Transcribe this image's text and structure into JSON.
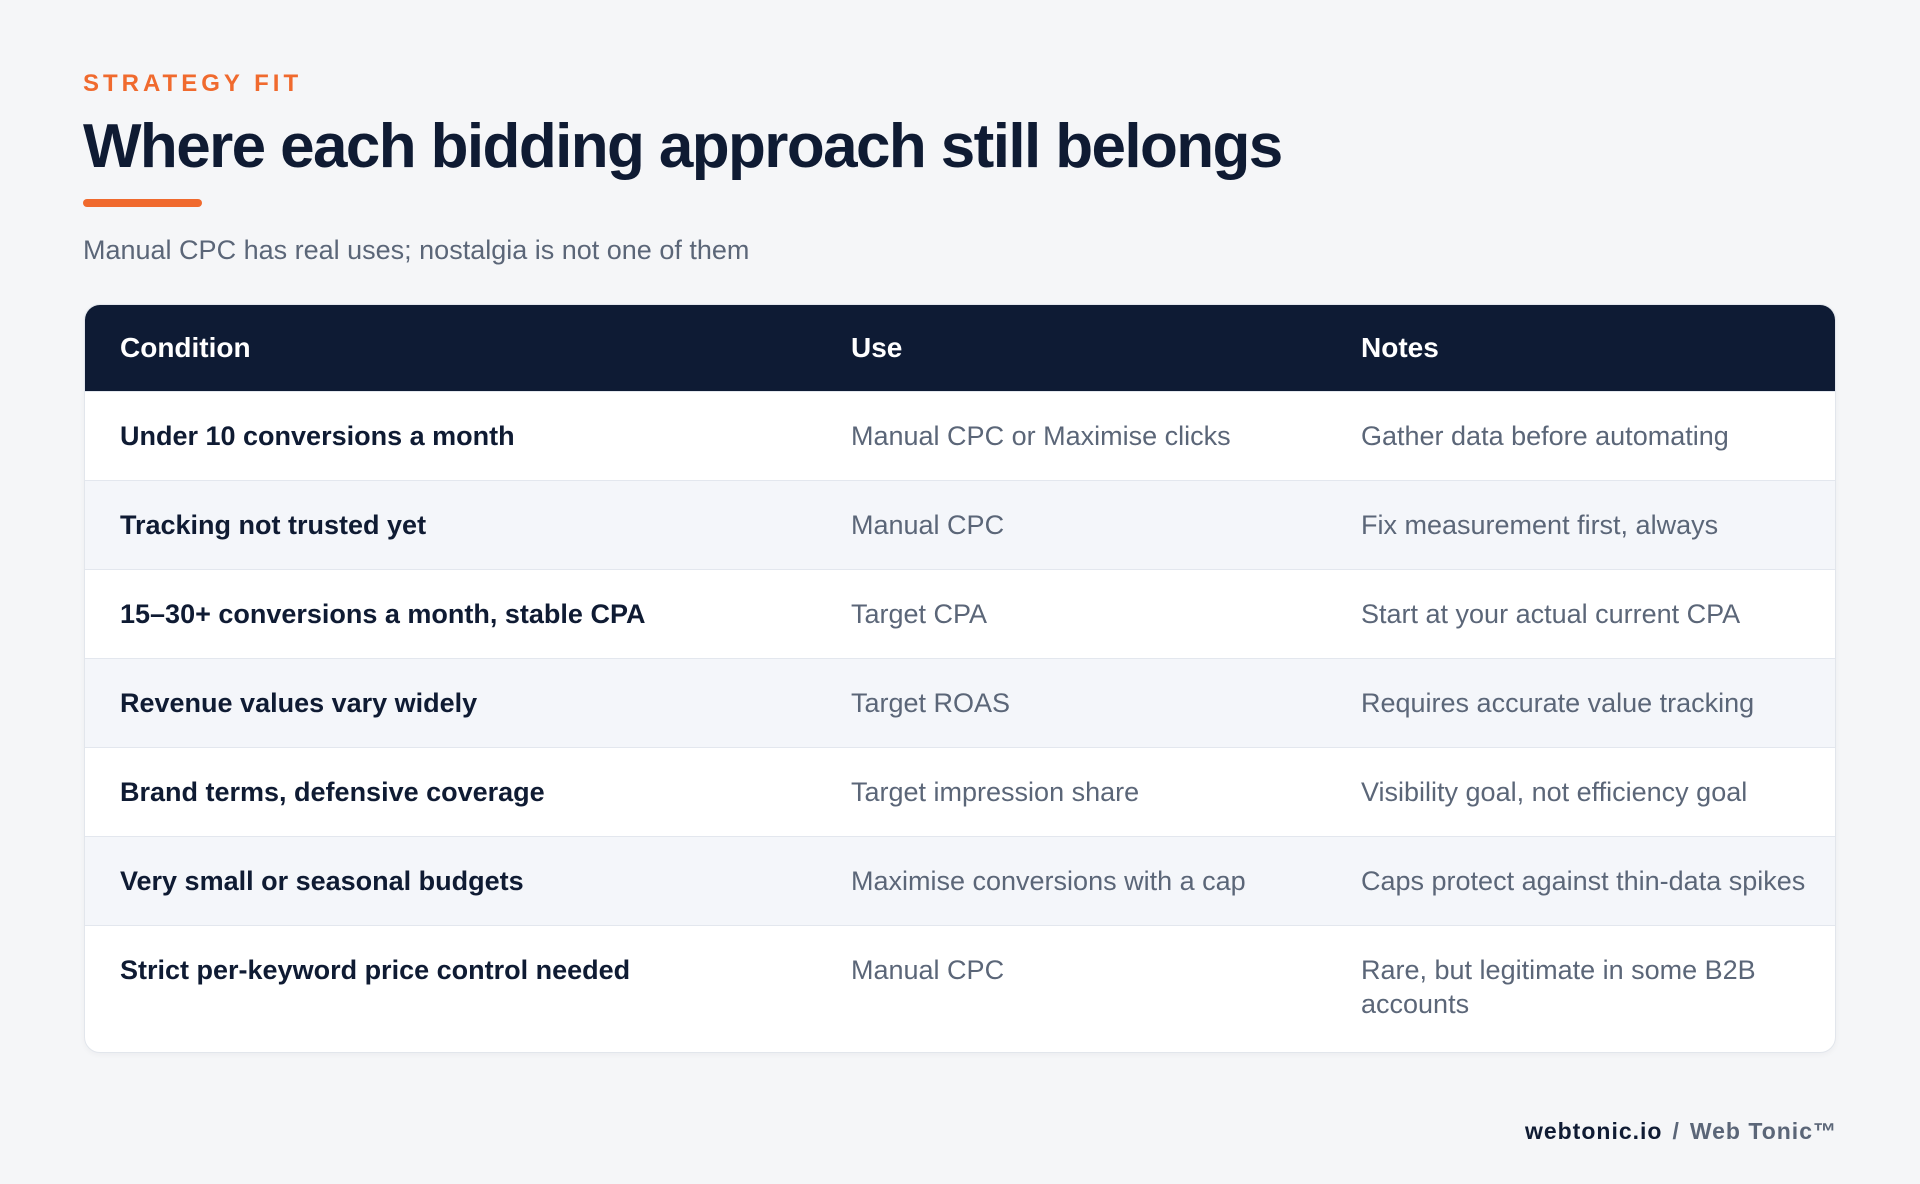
{
  "header": {
    "eyebrow": "STRATEGY FIT",
    "title": "Where each bidding approach still belongs",
    "subtitle": "Manual CPC has real uses; nostalgia is not one of them"
  },
  "table": {
    "columns": [
      "Condition",
      "Use",
      "Notes"
    ],
    "rows": [
      {
        "condition": "Under 10 conversions a month",
        "use": "Manual CPC or Maximise clicks",
        "notes": "Gather data before automating"
      },
      {
        "condition": "Tracking not trusted yet",
        "use": "Manual CPC",
        "notes": "Fix measurement first, always"
      },
      {
        "condition": "15–30+ conversions a month, stable CPA",
        "use": "Target CPA",
        "notes": "Start at your actual current CPA"
      },
      {
        "condition": "Revenue values vary widely",
        "use": "Target ROAS",
        "notes": "Requires accurate value tracking"
      },
      {
        "condition": "Brand terms, defensive coverage",
        "use": "Target impression share",
        "notes": "Visibility goal, not efficiency goal"
      },
      {
        "condition": "Very small or seasonal budgets",
        "use": "Maximise conversions with a cap",
        "notes": "Caps protect against thin-data spikes"
      },
      {
        "condition": "Strict per-keyword price control needed",
        "use": "Manual CPC",
        "notes": "Rare, but legitimate in some B2B accounts"
      }
    ]
  },
  "footer": {
    "domain": "webtonic.io",
    "separator": "/",
    "brand": "Web Tonic™"
  },
  "colors": {
    "accent": "#f06a2e",
    "navy": "#0e1b34",
    "muted_text": "#5b6678",
    "background": "#f5f6f8"
  }
}
